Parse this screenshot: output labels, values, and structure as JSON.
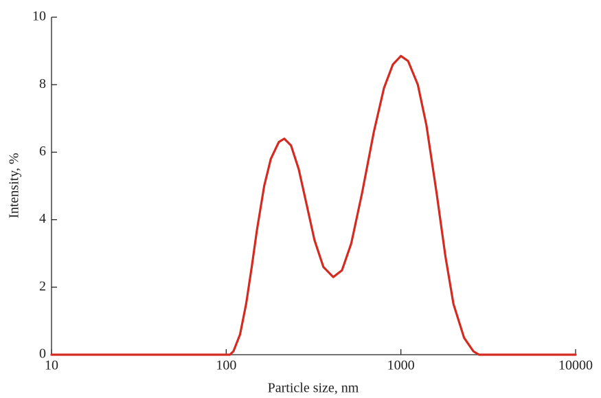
{
  "chart_data": {
    "type": "line",
    "x_label": "Particle size, nm",
    "y_label": "Intensity, %",
    "x": [
      10,
      100,
      105,
      110,
      120,
      130,
      140,
      150,
      165,
      180,
      200,
      215,
      235,
      260,
      290,
      320,
      360,
      410,
      460,
      520,
      600,
      700,
      800,
      900,
      1000,
      1100,
      1250,
      1400,
      1600,
      1800,
      2000,
      2300,
      2600,
      2800,
      10000
    ],
    "series": [
      {
        "name": "Intensity",
        "color": "#d42a20",
        "values": [
          0,
          0,
          0,
          0.1,
          0.6,
          1.5,
          2.6,
          3.7,
          5.0,
          5.8,
          6.3,
          6.4,
          6.2,
          5.5,
          4.4,
          3.4,
          2.6,
          2.3,
          2.5,
          3.3,
          4.8,
          6.6,
          7.9,
          8.6,
          8.85,
          8.7,
          8.0,
          6.8,
          4.8,
          2.9,
          1.5,
          0.5,
          0.1,
          0,
          0
        ]
      }
    ],
    "xlim": [
      10,
      10000
    ],
    "xticks": [
      10,
      100,
      1000,
      10000
    ],
    "x_scale": "log",
    "ylim": [
      0,
      10
    ],
    "yticks": [
      0,
      2,
      4,
      6,
      8,
      10
    ]
  }
}
